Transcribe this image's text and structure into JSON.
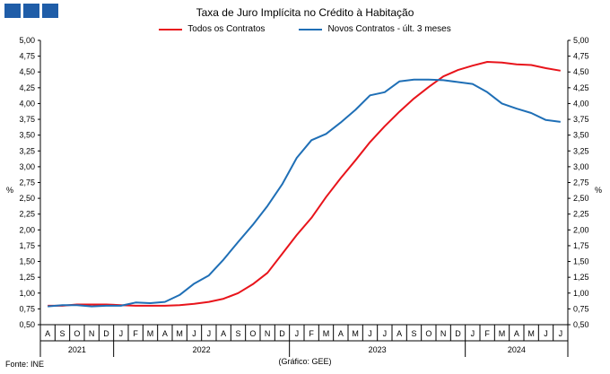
{
  "colors": {
    "logo": "#1f5da8",
    "series_1": "#e8141b",
    "series_2": "#1f6fb6"
  },
  "logo": {
    "icon": "three-blue-squares"
  },
  "source_text": "Fonte: INE",
  "credit_text": "(Gráfico: GEE)",
  "chart_data": {
    "type": "line",
    "title": "Taxa de Juro Implícita no Crédito à Habitação",
    "xlabel": "",
    "ylabel": "%",
    "ylabel_right": "%",
    "ylim": [
      0.5,
      5.0
    ],
    "y_ticks": [
      "0,50",
      "0,75",
      "1,00",
      "1,25",
      "1,50",
      "1,75",
      "2,00",
      "2,25",
      "2,50",
      "2,75",
      "3,00",
      "3,25",
      "3,50",
      "3,75",
      "4,00",
      "4,25",
      "4,50",
      "4,75",
      "5,00"
    ],
    "grid": false,
    "legend_position": "top",
    "categories": [
      "A",
      "S",
      "O",
      "N",
      "D",
      "J",
      "F",
      "M",
      "A",
      "M",
      "J",
      "J",
      "A",
      "S",
      "O",
      "N",
      "D",
      "J",
      "F",
      "M",
      "A",
      "M",
      "J",
      "J",
      "A",
      "S",
      "O",
      "N",
      "D",
      "J",
      "F",
      "M",
      "A",
      "M",
      "J",
      "J"
    ],
    "year_groups": [
      {
        "label": "2021",
        "count": 5
      },
      {
        "label": "2022",
        "count": 12
      },
      {
        "label": "2023",
        "count": 12
      },
      {
        "label": "2024",
        "count": 7
      }
    ],
    "series": [
      {
        "name": "Todos os Contratos",
        "values": [
          0.8,
          0.8,
          0.82,
          0.82,
          0.82,
          0.81,
          0.8,
          0.8,
          0.8,
          0.81,
          0.83,
          0.86,
          0.91,
          1.0,
          1.14,
          1.32,
          1.62,
          1.92,
          2.19,
          2.52,
          2.82,
          3.1,
          3.39,
          3.64,
          3.87,
          4.08,
          4.26,
          4.43,
          4.53,
          4.6,
          4.66,
          4.65,
          4.62,
          4.61,
          4.56,
          4.52
        ]
      },
      {
        "name": "Novos Contratos - últ. 3 meses",
        "values": [
          0.79,
          0.81,
          0.81,
          0.79,
          0.8,
          0.8,
          0.85,
          0.84,
          0.86,
          0.97,
          1.15,
          1.28,
          1.53,
          1.81,
          2.08,
          2.38,
          2.72,
          3.14,
          3.42,
          3.52,
          3.7,
          3.9,
          4.13,
          4.18,
          4.35,
          4.38,
          4.38,
          4.37,
          4.34,
          4.31,
          4.18,
          4.0,
          3.92,
          3.85,
          3.74,
          3.71
        ]
      }
    ]
  }
}
